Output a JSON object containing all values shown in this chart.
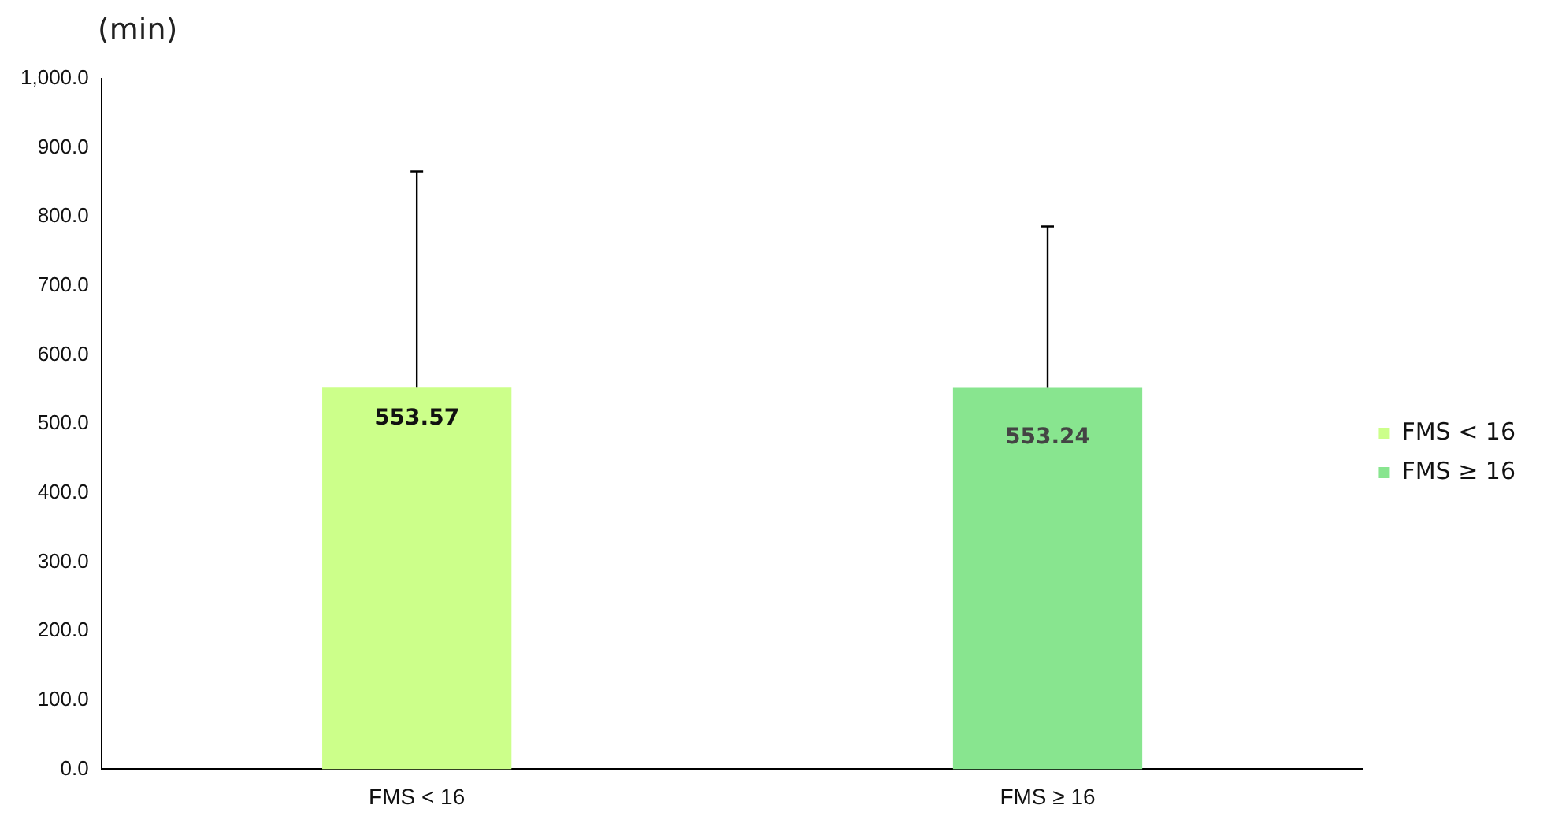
{
  "chart_data": {
    "type": "bar",
    "ylabel": "(min)",
    "categories": [
      "FMS < 16",
      "FMS ≥ 16"
    ],
    "series": [
      {
        "name": "FMS < 16",
        "color": "#ccff8a",
        "values": [
          553.57,
          null
        ],
        "errors": [
          [
            553.57,
            866
          ],
          null
        ]
      },
      {
        "name": "FMS ≥ 16",
        "color": "#88e58f",
        "values": [
          null,
          553.24
        ],
        "errors": [
          null,
          [
            553.24,
            786
          ]
        ]
      }
    ],
    "ylim": [
      0,
      1000
    ],
    "yticks": [
      {
        "value": 0,
        "label": "0.0"
      },
      {
        "value": 100,
        "label": "100.0"
      },
      {
        "value": 200,
        "label": "200.0"
      },
      {
        "value": 300,
        "label": "300.0"
      },
      {
        "value": 400,
        "label": "400.0"
      },
      {
        "value": 500,
        "label": "500.0"
      },
      {
        "value": 600,
        "label": "600.0"
      },
      {
        "value": 700,
        "label": "700.0"
      },
      {
        "value": 800,
        "label": "800.0"
      },
      {
        "value": 900,
        "label": "900.0"
      },
      {
        "value": 1000,
        "label": "1,000.0"
      }
    ],
    "data_labels": true,
    "grid": false,
    "legend": "right"
  }
}
